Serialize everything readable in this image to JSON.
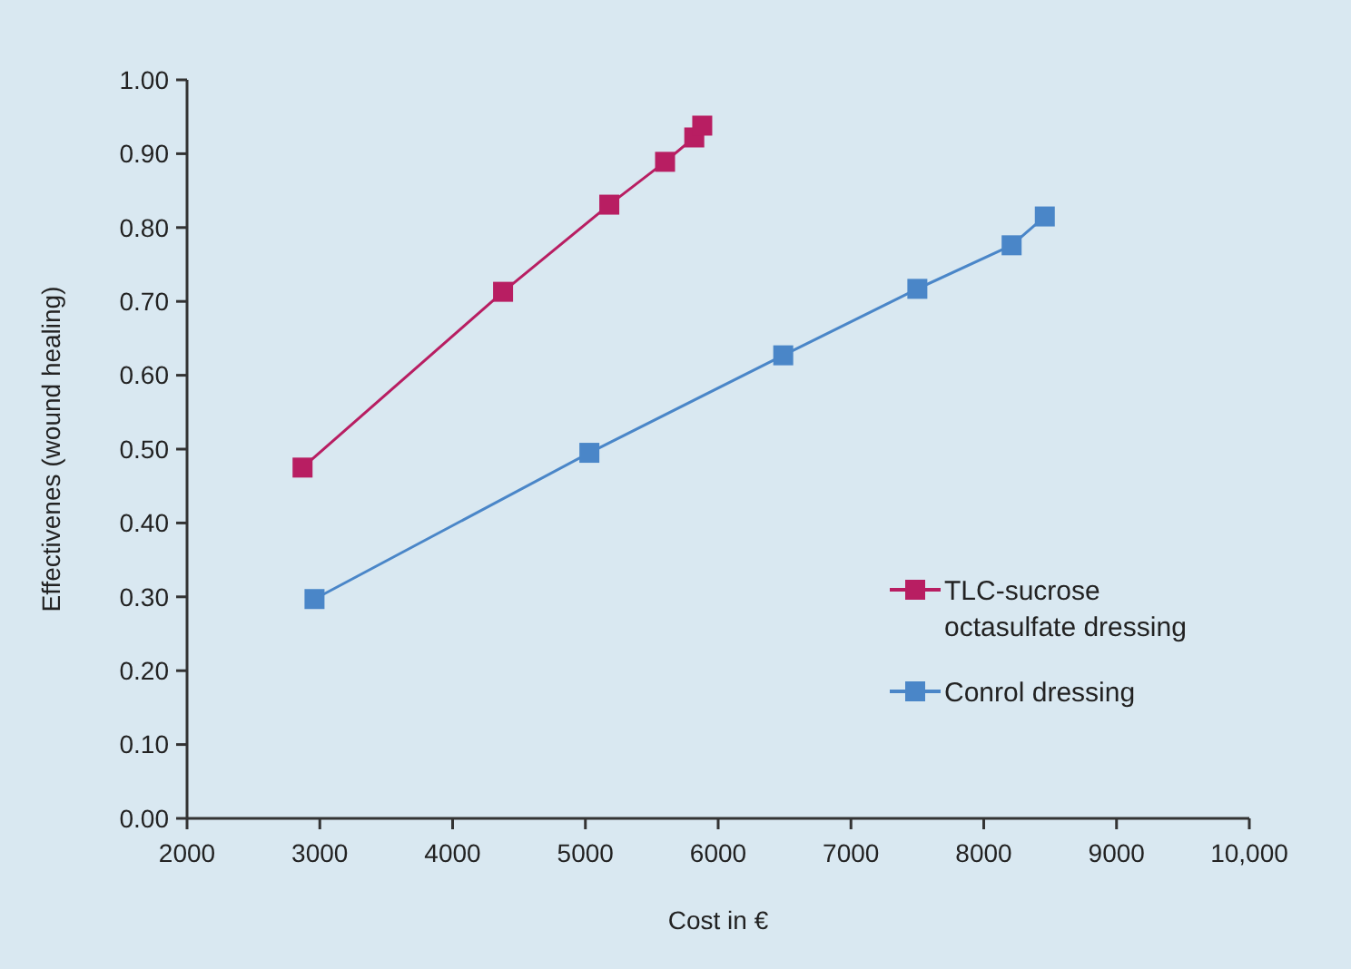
{
  "chart_data": {
    "type": "line",
    "xlabel": "Cost in €",
    "ylabel": "Effectivenes (wound healing)",
    "xlim": [
      2000,
      10000
    ],
    "xticks": [
      2000,
      3000,
      4000,
      5000,
      6000,
      7000,
      8000,
      9000,
      {
        "value": 10000,
        "label": "10,000"
      }
    ],
    "ylim": [
      0,
      1
    ],
    "yticks": [
      {
        "value": 0,
        "label": "0.00"
      },
      {
        "value": 0.1,
        "label": "0.10"
      },
      {
        "value": 0.2,
        "label": "0.20"
      },
      {
        "value": 0.3,
        "label": "0.30"
      },
      {
        "value": 0.4,
        "label": "0.40"
      },
      {
        "value": 0.5,
        "label": "0.50"
      },
      {
        "value": 0.6,
        "label": "0.60"
      },
      {
        "value": 0.7,
        "label": "0.70"
      },
      {
        "value": 0.8,
        "label": "0.80"
      },
      {
        "value": 0.9,
        "label": "0.90"
      },
      {
        "value": 1,
        "label": "1.00"
      }
    ],
    "grid": false,
    "legend": "right",
    "marker": "square",
    "line_style": "solid",
    "series": [
      {
        "name": "TLC-sucrose octasulfate dressing",
        "color": "#b81e62",
        "x": [
          2870,
          4380,
          5180,
          5600,
          5820,
          5880
        ],
        "values": [
          0.475,
          0.713,
          0.831,
          0.889,
          0.922,
          0.938
        ]
      },
      {
        "name": "Conrol dressing",
        "color": "#4a86c8",
        "x": [
          2960,
          5030,
          6490,
          7500,
          8210,
          8460
        ],
        "values": [
          0.297,
          0.495,
          0.627,
          0.717,
          0.776,
          0.815
        ]
      }
    ]
  }
}
